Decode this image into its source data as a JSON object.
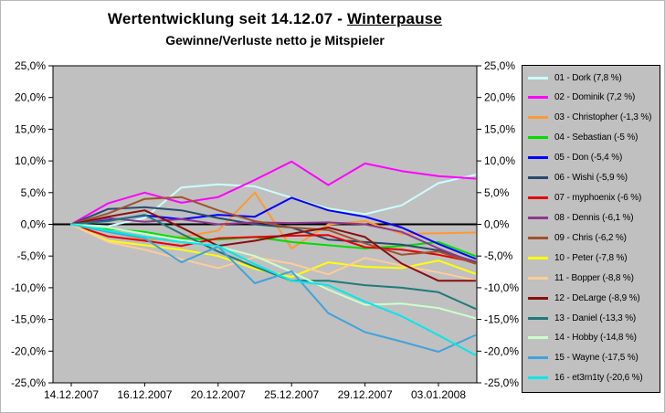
{
  "header": {
    "title_prefix": "Wertentwicklung seit 14.12.07 - ",
    "title_underlined": "Winterpause",
    "subtitle": "Gewinne/Verluste netto je Mitspieler"
  },
  "chart_data": {
    "type": "line",
    "title": "Wertentwicklung seit 14.12.07 - Winterpause",
    "subtitle": "Gewinne/Verluste netto je Mitspieler",
    "plot_bg": "#C0C0C0",
    "axis_color": "#000000",
    "zero_line": 0,
    "grid": false,
    "legend_position": "right",
    "ylim": [
      -25,
      25
    ],
    "y_tick_step": 5,
    "y_tick_labels": [
      "25,0%",
      "20,0%",
      "15,0%",
      "10,0%",
      "5,0%",
      "0,0%",
      "-5,0%",
      "-10,0%",
      "-15,0%",
      "-20,0%",
      "-25,0%"
    ],
    "y_tick_values": [
      25,
      20,
      15,
      10,
      5,
      0,
      -5,
      -10,
      -15,
      -20,
      -25
    ],
    "n_points": 12,
    "x_tick_labels": [
      "14.12.2007",
      "16.12.2007",
      "20.12.2007",
      "25.12.2007",
      "29.12.2007",
      "03.01.2008"
    ],
    "x_label_point_indices": [
      0,
      2,
      4,
      6,
      8,
      10
    ],
    "series": [
      {
        "label": "01 - Dork (7,8 %)",
        "name": "Dork",
        "final": "7,8 %",
        "color": "#CCFFFF",
        "values": [
          0,
          -0.3,
          1.0,
          5.8,
          6.3,
          6.0,
          4.2,
          2.5,
          1.6,
          3.0,
          6.5,
          7.8
        ]
      },
      {
        "label": "02 - Dominik (7,2 %)",
        "name": "Dominik",
        "final": "7,2 %",
        "color": "#FF00FF",
        "values": [
          0,
          3.3,
          5.0,
          3.4,
          4.3,
          7.0,
          9.9,
          6.2,
          9.6,
          8.4,
          7.6,
          7.2
        ]
      },
      {
        "label": "03 - Christopher (-1,3 %)",
        "name": "Christopher",
        "final": "-1,3 %",
        "color": "#FF9933",
        "values": [
          0,
          -1.0,
          -2.5,
          -2.0,
          -1.0,
          5.0,
          -3.8,
          0.0,
          0.5,
          -1.5,
          -1.4,
          -1.3
        ]
      },
      {
        "label": "04 - Sebastian (-5 %)",
        "name": "Sebastian",
        "final": "-5 %",
        "color": "#00DD00",
        "values": [
          0,
          -0.7,
          -1.2,
          -2.2,
          -2.4,
          -2.0,
          -2.8,
          -3.3,
          -3.8,
          -3.4,
          -2.8,
          -5.0
        ]
      },
      {
        "label": "05 - Don (-5,4 %)",
        "name": "Don",
        "final": "-5,4 %",
        "color": "#0000FF",
        "values": [
          0,
          0.6,
          1.4,
          0.8,
          1.5,
          1.2,
          4.2,
          2.2,
          1.2,
          -0.5,
          -3.1,
          -5.4
        ]
      },
      {
        "label": "06 - Wishi (-5,9 %)",
        "name": "Wishi",
        "final": "-5,9 %",
        "color": "#2B4A6F",
        "values": [
          0,
          2.4,
          2.7,
          2.2,
          1.0,
          0.0,
          -0.5,
          -2.4,
          -2.8,
          -3.2,
          -4.1,
          -5.9
        ]
      },
      {
        "label": "07 - myphoenix (-6 %)",
        "name": "myphoenix",
        "final": "-6 %",
        "color": "#E60000",
        "values": [
          0,
          -1.9,
          -2.6,
          -3.4,
          -2.2,
          -2.0,
          -1.8,
          -1.7,
          -3.6,
          -4.0,
          -4.8,
          -6.0
        ]
      },
      {
        "label": "08 - Dennis (-6,1 %)",
        "name": "Dennis",
        "final": "-6,1 %",
        "color": "#8E388E",
        "values": [
          0,
          1.0,
          0.4,
          0.8,
          0.0,
          0.3,
          0.2,
          0.3,
          0.0,
          -1.2,
          -3.8,
          -6.1
        ]
      },
      {
        "label": "09 - Chris (-6,2 %)",
        "name": "Chris",
        "final": "-6,2 %",
        "color": "#A0522D",
        "values": [
          0,
          1.7,
          4.0,
          4.3,
          2.2,
          0.5,
          -0.5,
          -0.9,
          -3.0,
          -4.8,
          -4.3,
          -6.2
        ]
      },
      {
        "label": "10 - Peter (-7,8 %)",
        "name": "Peter",
        "final": "-7,8 %",
        "color": "#FFFF00",
        "values": [
          0,
          -2.6,
          -3.3,
          -4.0,
          -5.0,
          -7.0,
          -8.3,
          -6.0,
          -6.7,
          -6.9,
          -5.7,
          -7.8
        ]
      },
      {
        "label": "11 - Bopper (-8,8 %)",
        "name": "Bopper",
        "final": "-8,8 %",
        "color": "#FFCC99",
        "values": [
          0,
          -2.8,
          -4.0,
          -5.5,
          -6.9,
          -5.2,
          -6.2,
          -7.9,
          -5.3,
          -6.5,
          -7.6,
          -8.8
        ]
      },
      {
        "label": "12 - DeLarge (-8,9 %)",
        "name": "DeLarge",
        "final": "-8,9 %",
        "color": "#8B0E0E",
        "values": [
          0,
          1.2,
          2.2,
          -0.5,
          -3.4,
          -2.6,
          -1.5,
          -0.5,
          -2.0,
          -6.2,
          -8.9,
          -8.9
        ]
      },
      {
        "label": "13 - Daniel (-13,3 %)",
        "name": "Daniel",
        "final": "-13,3 %",
        "color": "#1F7A7A",
        "values": [
          0,
          0.5,
          1.5,
          -1.5,
          -4.3,
          -6.7,
          -8.9,
          -8.9,
          -9.6,
          -10.0,
          -10.7,
          -13.3
        ]
      },
      {
        "label": "14 - Hobby (-14,8 %)",
        "name": "Hobby",
        "final": "-14,8 %",
        "color": "#CCFFCC",
        "values": [
          0,
          -0.5,
          -1.5,
          -2.5,
          -3.5,
          -5.0,
          -7.5,
          -10.3,
          -12.7,
          -12.5,
          -13.2,
          -14.8
        ]
      },
      {
        "label": "15 - Wayne (-17,5 %)",
        "name": "Wayne",
        "final": "-17,5 %",
        "color": "#41A3D9",
        "values": [
          0,
          -1.2,
          -2.2,
          -6.0,
          -3.5,
          -9.3,
          -7.4,
          -14.0,
          -17.0,
          -18.5,
          -20.1,
          -17.5
        ]
      },
      {
        "label": "16 - et3rn1ty (-20,6 %)",
        "name": "et3rn1ty",
        "final": "-20,6 %",
        "color": "#00E8E8",
        "values": [
          0,
          -1.0,
          -2.0,
          -2.8,
          -3.4,
          -6.3,
          -8.9,
          -9.6,
          -12.2,
          -14.5,
          -17.5,
          -20.6
        ]
      }
    ]
  }
}
